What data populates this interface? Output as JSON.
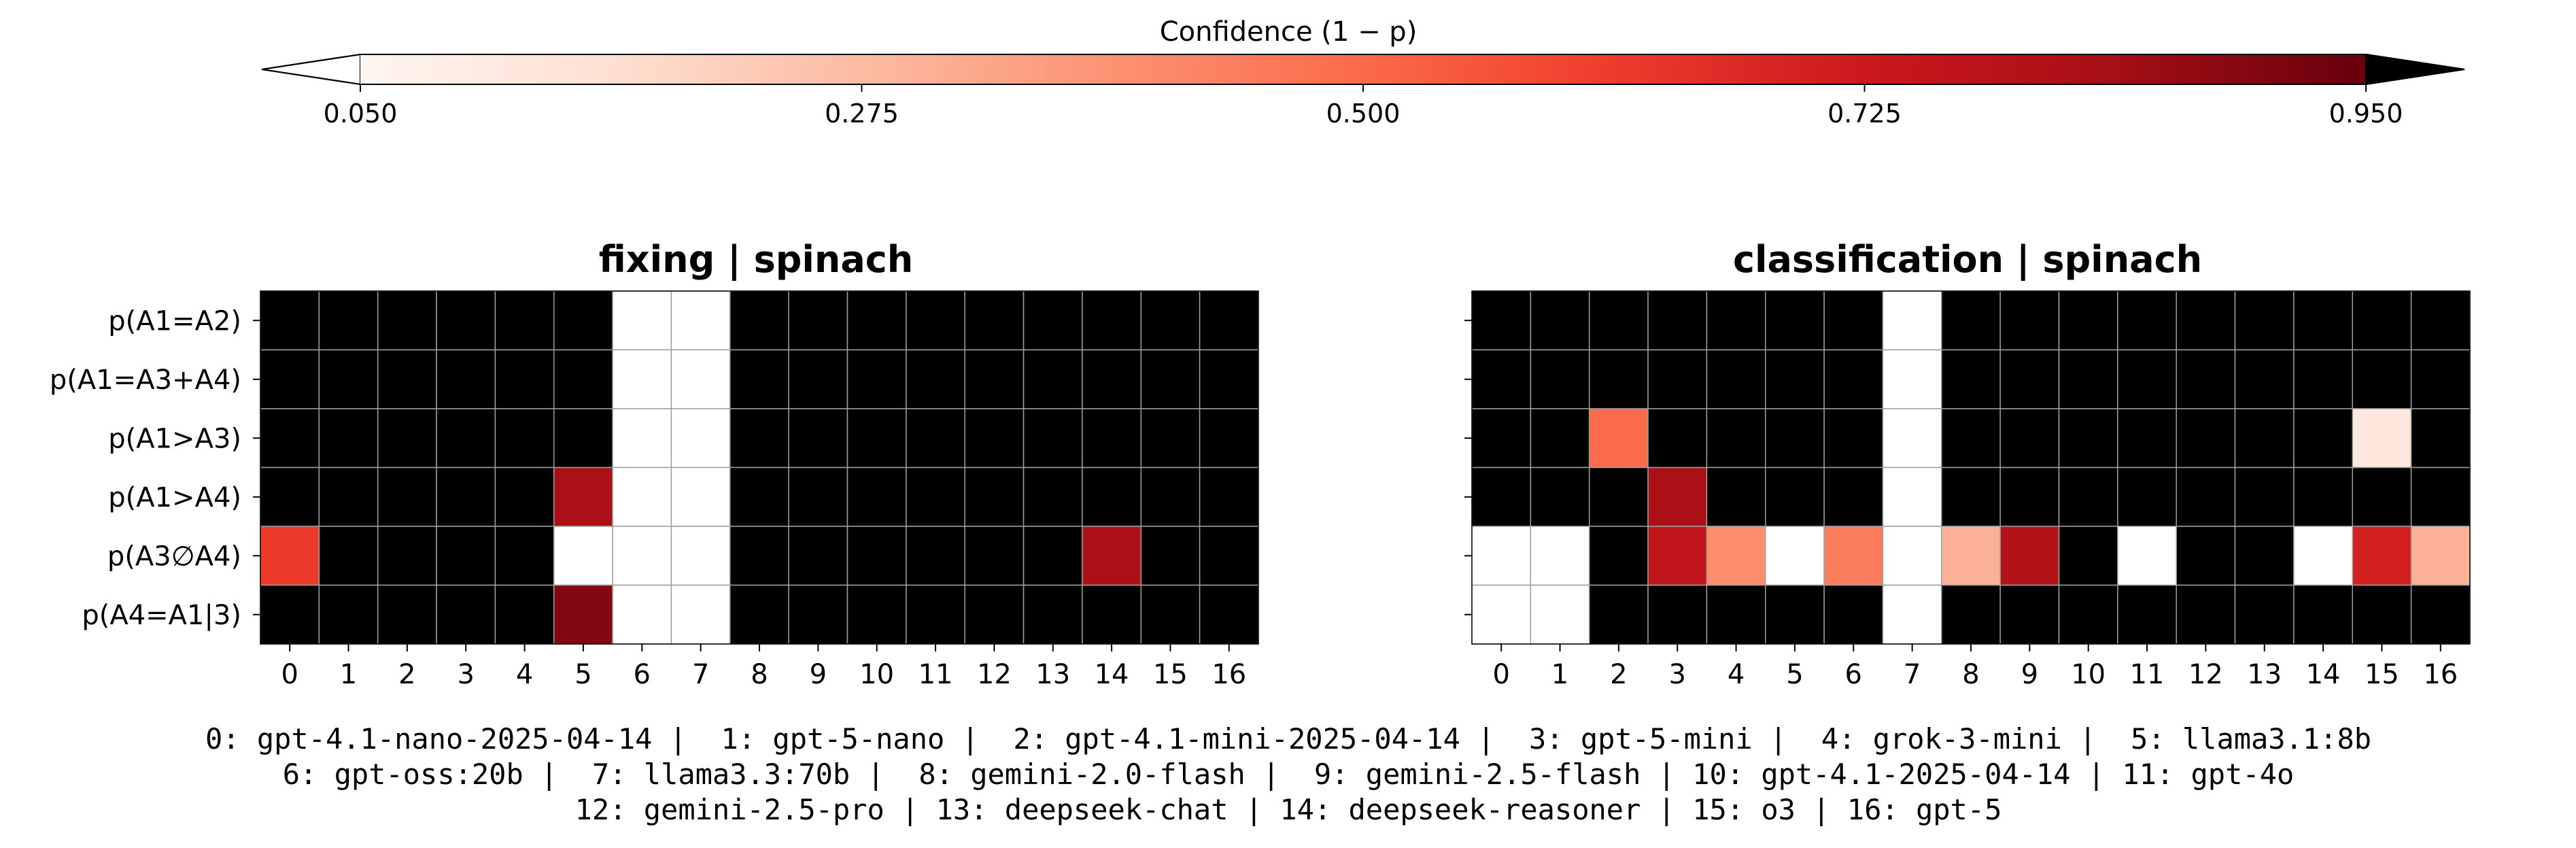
{
  "colorbar": {
    "label": "Confidence (1 − p)",
    "vmin": 0.05,
    "vmax": 0.95,
    "ticks": [
      "0.050",
      "0.275",
      "0.500",
      "0.725",
      "0.950"
    ],
    "tick_values": [
      0.05,
      0.275,
      0.5,
      0.725,
      0.95
    ],
    "extend": "both",
    "colormap": "Reds",
    "under_color": "#ffffff",
    "over_color": "#000000"
  },
  "row_labels": [
    "p(A1=A2)",
    "p(A1=A3+A4)",
    "p(A1>A3)",
    "p(A1>A4)",
    "p(A3∅A4)",
    "p(A4=A1|3)"
  ],
  "col_labels": [
    "0",
    "1",
    "2",
    "3",
    "4",
    "5",
    "6",
    "7",
    "8",
    "9",
    "10",
    "11",
    "12",
    "13",
    "14",
    "15",
    "16"
  ],
  "footer": {
    "lines": [
      "0: gpt-4.1-nano-2025-04-14 |  1: gpt-5-nano |  2: gpt-4.1-mini-2025-04-14 |  3: gpt-5-mini |  4: grok-3-mini |  5: llama3.1:8b",
      "6: gpt-oss:20b |  7: llama3.3:70b |  8: gemini-2.0-flash |  9: gemini-2.5-flash | 10: gpt-4.1-2025-04-14 | 11: gpt-4o",
      "12: gemini-2.5-pro | 13: deepseek-chat | 14: deepseek-reasoner | 15: o3 | 16: gpt-5"
    ]
  },
  "chart_data": [
    {
      "type": "heatmap",
      "title": "fixing | spinach",
      "rows": [
        "p(A1=A2)",
        "p(A1=A3+A4)",
        "p(A1>A3)",
        "p(A1>A4)",
        "p(A3∅A4)",
        "p(A4=A1|3)"
      ],
      "columns": [
        "0",
        "1",
        "2",
        "3",
        "4",
        "5",
        "6",
        "7",
        "8",
        "9",
        "10",
        "11",
        "12",
        "13",
        "14",
        "15",
        "16"
      ],
      "values": [
        [
          1,
          1,
          1,
          1,
          1,
          1,
          0,
          0,
          1,
          1,
          1,
          1,
          1,
          1,
          1,
          1,
          1
        ],
        [
          1,
          1,
          1,
          1,
          1,
          1,
          0,
          0,
          1,
          1,
          1,
          1,
          1,
          1,
          1,
          1,
          1
        ],
        [
          1,
          1,
          1,
          1,
          1,
          1,
          0,
          0,
          1,
          1,
          1,
          1,
          1,
          1,
          1,
          1,
          1
        ],
        [
          1,
          1,
          1,
          1,
          1,
          0.82,
          0,
          0,
          1,
          1,
          1,
          1,
          1,
          1,
          1,
          1,
          1
        ],
        [
          0.62,
          1,
          1,
          1,
          1,
          0,
          0,
          0,
          1,
          1,
          1,
          1,
          1,
          1,
          0.82,
          1,
          1
        ],
        [
          1,
          1,
          1,
          1,
          1,
          0.9,
          0,
          0,
          1,
          1,
          1,
          1,
          1,
          1,
          1,
          1,
          1
        ]
      ]
    },
    {
      "type": "heatmap",
      "title": "classification | spinach",
      "rows": [
        "p(A1=A2)",
        "p(A1=A3+A4)",
        "p(A1>A3)",
        "p(A1>A4)",
        "p(A3∅A4)",
        "p(A4=A1|3)"
      ],
      "columns": [
        "0",
        "1",
        "2",
        "3",
        "4",
        "5",
        "6",
        "7",
        "8",
        "9",
        "10",
        "11",
        "12",
        "13",
        "14",
        "15",
        "16"
      ],
      "values": [
        [
          1,
          1,
          1,
          1,
          1,
          1,
          1,
          0,
          1,
          1,
          1,
          1,
          1,
          1,
          1,
          1,
          1
        ],
        [
          1,
          1,
          1,
          1,
          1,
          1,
          1,
          0,
          1,
          1,
          1,
          1,
          1,
          1,
          1,
          1,
          1
        ],
        [
          1,
          1,
          0.5,
          1,
          1,
          1,
          1,
          0,
          1,
          1,
          1,
          1,
          1,
          1,
          1,
          0.12,
          1
        ],
        [
          1,
          1,
          1,
          0.82,
          1,
          1,
          1,
          0,
          1,
          1,
          1,
          1,
          1,
          1,
          1,
          1,
          1
        ],
        [
          0,
          0,
          1,
          0.76,
          0.4,
          0,
          0.45,
          0,
          0.3,
          0.8,
          1,
          0,
          1,
          1,
          0,
          0.7,
          0.3
        ],
        [
          0,
          0,
          1,
          1,
          1,
          1,
          1,
          0,
          1,
          1,
          1,
          1,
          1,
          1,
          1,
          1,
          1
        ]
      ]
    }
  ]
}
